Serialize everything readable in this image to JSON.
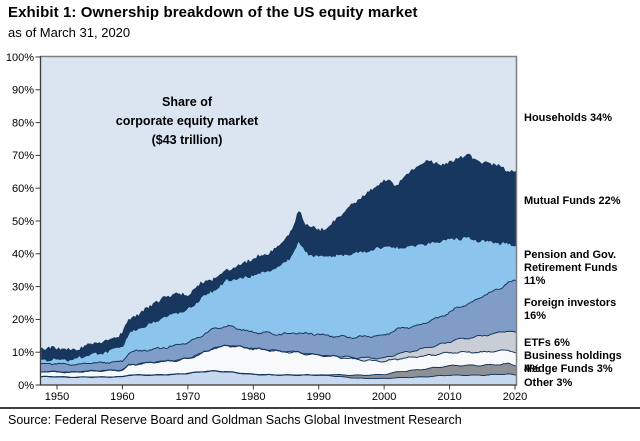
{
  "header": {
    "title": "Exhibit 1: Ownership breakdown of the US equity market",
    "subtitle": "as of March 31, 2020"
  },
  "source": "Source: Federal Reserve Board and Goldman Sachs Global Investment Research",
  "chart_data": {
    "type": "area",
    "stacked": true,
    "title_annotation": "Share of\ncorporate equity market\n($43 trillion)",
    "xlabel": "",
    "ylabel": "",
    "ylim": [
      0,
      100
    ],
    "xlim": [
      1950,
      2020
    ],
    "grid": false,
    "legend_position": "right",
    "y_ticks": [
      "0%",
      "10%",
      "20%",
      "30%",
      "40%",
      "50%",
      "60%",
      "70%",
      "80%",
      "90%",
      "100%"
    ],
    "x_ticks": [
      "1950",
      "1960",
      "1970",
      "1980",
      "1990",
      "2000",
      "2010",
      "2020"
    ],
    "x": [
      1950,
      1952,
      1955,
      1958,
      1960,
      1961,
      1963,
      1965,
      1968,
      1970,
      1972,
      1974,
      1976,
      1978,
      1980,
      1982,
      1984,
      1986,
      1987,
      1988,
      1990,
      1992,
      1995,
      1997,
      2000,
      2002,
      2005,
      2007,
      2009,
      2011,
      2013,
      2015,
      2017,
      2019,
      2020
    ],
    "series": [
      {
        "name": "Other",
        "label": "Other 3%",
        "color": "#c6d9f0",
        "values": [
          2.5,
          2.3,
          2.4,
          2.4,
          2.5,
          3,
          3,
          3,
          3.2,
          3.5,
          4,
          4.2,
          4,
          3.6,
          3.2,
          3.1,
          3,
          3,
          3,
          3,
          3,
          2.8,
          2.2,
          2,
          2,
          2.2,
          2.4,
          2.6,
          2.9,
          3,
          3,
          3,
          3.2,
          3.4,
          3
        ]
      },
      {
        "name": "Hedge Funds",
        "label": "Hedge Funds 3%",
        "color": "#8d9196",
        "values": [
          0,
          0,
          0,
          0,
          0,
          0,
          0,
          0,
          0,
          0,
          0,
          0,
          0,
          0,
          0,
          0,
          0,
          0,
          0,
          0,
          0,
          0.4,
          0.8,
          1,
          1.2,
          1.8,
          2.2,
          2.5,
          2.7,
          3,
          3,
          3,
          3,
          3.1,
          3
        ]
      },
      {
        "name": "Business holdings",
        "label": "Business holdings 4%",
        "color": "#f7f9fb",
        "values": [
          1.5,
          1.5,
          1.8,
          2,
          2,
          3,
          3.5,
          4,
          4.2,
          4.5,
          5.5,
          7,
          8,
          8,
          7.8,
          7.6,
          7.2,
          7,
          6.8,
          6.5,
          6,
          5.5,
          5,
          4.5,
          4,
          4,
          4,
          4,
          4,
          4,
          4,
          4,
          4.1,
          4.2,
          4
        ]
      },
      {
        "name": "ETFs",
        "label": "ETFs 6%",
        "color": "#c9ced6",
        "values": [
          0,
          0,
          0,
          0,
          0,
          0,
          0,
          0,
          0,
          0,
          0,
          0,
          0,
          0,
          0,
          0,
          0,
          0,
          0,
          0,
          0,
          0,
          0.5,
          0.8,
          1,
          1.5,
          2,
          2.5,
          3,
          3.8,
          4.4,
          5,
          5.5,
          5.9,
          6
        ]
      },
      {
        "name": "Foreign investors",
        "label": "Foreign investors 16%",
        "color": "#7f9dc6",
        "values": [
          2.5,
          2.4,
          2.5,
          2.5,
          2.6,
          4,
          4,
          4,
          4.5,
          5,
          5.5,
          6,
          6,
          5.5,
          5,
          5.2,
          5.3,
          5.8,
          6,
          6.2,
          6.5,
          6.2,
          6,
          6.5,
          7,
          7.5,
          7.5,
          7.8,
          8.5,
          9.5,
          10.5,
          12,
          13,
          14.5,
          16
        ]
      },
      {
        "name": "Pension and Gov. Retirement Funds",
        "label": "Pension and Gov.\nRetirement Funds 11%",
        "color": "#8bc5ee",
        "values": [
          1.5,
          1.7,
          2.5,
          3.5,
          4.5,
          6,
          7,
          8.5,
          10,
          10,
          11.5,
          12,
          14,
          15.5,
          17.5,
          18.5,
          20.5,
          24,
          28,
          25,
          23.5,
          24.5,
          25.5,
          26,
          27,
          25,
          24.5,
          24,
          23,
          21.5,
          20,
          17,
          14.5,
          12,
          11
        ]
      },
      {
        "name": "Mutual Funds",
        "label": "Mutual Funds 22%",
        "color": "#17375e",
        "values": [
          3,
          2.5,
          3,
          3.5,
          4,
          4,
          4.5,
          5.5,
          6,
          4,
          4.5,
          3,
          3,
          4,
          5,
          5.5,
          6,
          7.5,
          9.5,
          8,
          8,
          9.5,
          14.5,
          17,
          20,
          19,
          24.5,
          25,
          22.5,
          24,
          25,
          23.5,
          24,
          22,
          22
        ]
      },
      {
        "name": "Households",
        "label": "Households 34%",
        "color": "#dbe4f1",
        "remainder": true,
        "note": "remainder to 100%"
      }
    ],
    "outline_color": "#17365d",
    "plot_bg": "#dbe4f1",
    "frame_color": "#7f7f7f",
    "axis_color": "#3a3a3a"
  }
}
